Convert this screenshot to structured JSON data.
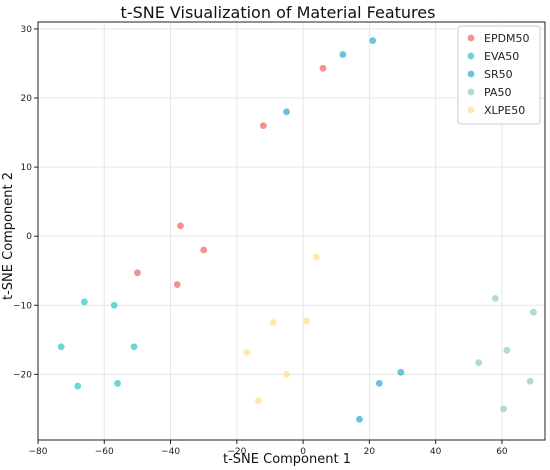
{
  "chart_data": {
    "type": "scatter",
    "title": "t-SNE Visualization of Material Features",
    "xlabel": "t-SNE Component 1",
    "ylabel": "t-SNE Component 2",
    "xlim": [
      -80,
      73
    ],
    "ylim": [
      -29.5,
      31
    ],
    "x_ticks": [
      -80,
      -60,
      -40,
      -20,
      0,
      20,
      40,
      60
    ],
    "y_ticks": [
      -20,
      -10,
      0,
      10,
      20,
      30
    ],
    "grid": true,
    "legend_position": "top-right",
    "series": [
      {
        "name": "EPDM50",
        "color": "#f08080",
        "points": [
          [
            -37,
            1.5
          ],
          [
            -30,
            -2
          ],
          [
            -50,
            -5.3
          ],
          [
            -38,
            -7
          ],
          [
            -12,
            16
          ],
          [
            6,
            24.3
          ]
        ]
      },
      {
        "name": "EVA50",
        "color": "#4fd0d0",
        "points": [
          [
            -66,
            -9.5
          ],
          [
            -57,
            -10
          ],
          [
            -73,
            -16
          ],
          [
            -51,
            -16
          ],
          [
            -68,
            -21.7
          ],
          [
            -56,
            -21.3
          ]
        ]
      },
      {
        "name": "SR50",
        "color": "#4db8d8",
        "points": [
          [
            -5,
            18
          ],
          [
            12,
            26.3
          ],
          [
            21,
            28.3
          ],
          [
            23,
            -21.3
          ],
          [
            29.5,
            -19.7
          ],
          [
            17,
            -26.5
          ]
        ]
      },
      {
        "name": "PA50",
        "color": "#a0d8c0",
        "points": [
          [
            58,
            -9
          ],
          [
            69.5,
            -11
          ],
          [
            53,
            -18.3
          ],
          [
            61.5,
            -16.5
          ],
          [
            68.5,
            -21
          ],
          [
            60.5,
            -25
          ]
        ]
      },
      {
        "name": "XLPE50",
        "color": "#fde4a0",
        "points": [
          [
            4,
            -3
          ],
          [
            -9,
            -12.5
          ],
          [
            1,
            -12.3
          ],
          [
            -17,
            -16.8
          ],
          [
            -5,
            -20
          ],
          [
            -13.5,
            -23.8
          ]
        ]
      }
    ]
  }
}
